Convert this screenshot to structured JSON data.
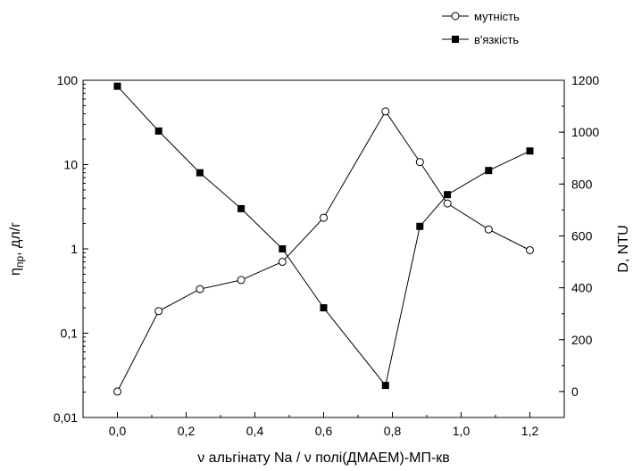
{
  "caption_fragment": "",
  "chart_data": {
    "type": "line",
    "title": "",
    "xlabel": "ν альгінату Na / ν полі(ДМАЕМ)-МП-кв",
    "ylabel_left": "η_пр, дл/г",
    "ylabel_left_main": "η",
    "ylabel_left_sub": "пр",
    "ylabel_left_rest": ", дл/г",
    "ylabel_right": "D, NTU",
    "xlim": [
      -0.1,
      1.3
    ],
    "ylim_left": [
      0.01,
      100
    ],
    "ylim_right": [
      -100,
      1200
    ],
    "y_left_scale": "log",
    "x_ticks": [
      0.0,
      0.2,
      0.4,
      0.6,
      0.8,
      1.0,
      1.2
    ],
    "x_tick_labels": [
      "0,0",
      "0,2",
      "0,4",
      "0,6",
      "0,8",
      "1,0",
      "1,2"
    ],
    "y_left_ticks": [
      0.01,
      0.1,
      1,
      10,
      100
    ],
    "y_left_tick_labels": [
      "0,01",
      "0,1",
      "1",
      "10",
      "100"
    ],
    "y_right_ticks": [
      0,
      200,
      400,
      600,
      800,
      1000,
      1200
    ],
    "y_right_tick_labels": [
      "0",
      "200",
      "400",
      "600",
      "800",
      "1000",
      "1200"
    ],
    "legend_position": "top-right",
    "grid": false,
    "series": [
      {
        "name": "мутність",
        "axis": "right",
        "marker": "open-circle",
        "x": [
          0.0,
          0.12,
          0.24,
          0.36,
          0.48,
          0.6,
          0.78,
          0.88,
          0.96,
          1.08,
          1.2
        ],
        "y": [
          0,
          310,
          395,
          430,
          500,
          670,
          1080,
          885,
          725,
          625,
          545
        ]
      },
      {
        "name": "в'язкість",
        "axis": "left",
        "marker": "filled-square",
        "x": [
          0.0,
          0.12,
          0.24,
          0.36,
          0.48,
          0.6,
          0.78,
          0.88,
          0.96,
          1.08,
          1.2
        ],
        "y": [
          85,
          25,
          8,
          3,
          1,
          0.2,
          0.024,
          1.85,
          4.4,
          8.5,
          14.5
        ]
      }
    ]
  }
}
